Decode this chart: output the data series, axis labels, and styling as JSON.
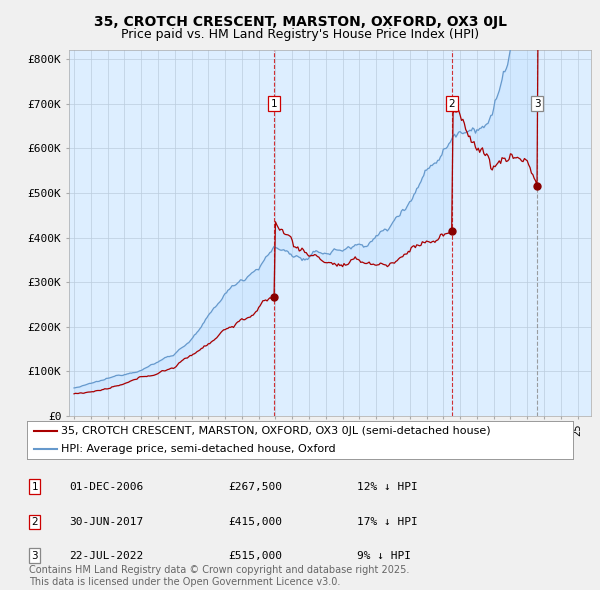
{
  "title_line1": "35, CROTCH CRESCENT, MARSTON, OXFORD, OX3 0JL",
  "title_line2": "Price paid vs. HM Land Registry's House Price Index (HPI)",
  "ylabel_ticks": [
    "£0",
    "£100K",
    "£200K",
    "£300K",
    "£400K",
    "£500K",
    "£600K",
    "£700K",
    "£800K"
  ],
  "ytick_values": [
    0,
    100000,
    200000,
    300000,
    400000,
    500000,
    600000,
    700000,
    800000
  ],
  "ylim": [
    0,
    820000
  ],
  "xlim_start": 1994.7,
  "xlim_end": 2025.8,
  "sale_dates_year": [
    2006.917,
    2017.5,
    2022.583
  ],
  "sale_prices": [
    267500,
    415000,
    515000
  ],
  "sale_labels": [
    "1",
    "2",
    "3"
  ],
  "vline_colors": [
    "#cc0000",
    "#cc0000",
    "#888888"
  ],
  "vline_styles": [
    "--",
    "--",
    "--"
  ],
  "bg_color": "#f0f0f0",
  "plot_bg_color": "#ddeeff",
  "grid_color": "#bbccdd",
  "red_line_color": "#aa0000",
  "blue_line_color": "#6699cc",
  "fill_color": "#bbddff",
  "dot_color": "#880000",
  "legend_label_red": "35, CROTCH CRESCENT, MARSTON, OXFORD, OX3 0JL (semi-detached house)",
  "legend_label_blue": "HPI: Average price, semi-detached house, Oxford",
  "table_rows": [
    [
      "1",
      "01-DEC-2006",
      "£267,500",
      "12% ↓ HPI"
    ],
    [
      "2",
      "30-JUN-2017",
      "£415,000",
      "17% ↓ HPI"
    ],
    [
      "3",
      "22-JUL-2022",
      "£515,000",
      "9% ↓ HPI"
    ]
  ],
  "footer_text": "Contains HM Land Registry data © Crown copyright and database right 2025.\nThis data is licensed under the Open Government Licence v3.0.",
  "title_fontsize": 10,
  "subtitle_fontsize": 9,
  "tick_fontsize": 8,
  "legend_fontsize": 8,
  "table_fontsize": 8,
  "footer_fontsize": 7
}
